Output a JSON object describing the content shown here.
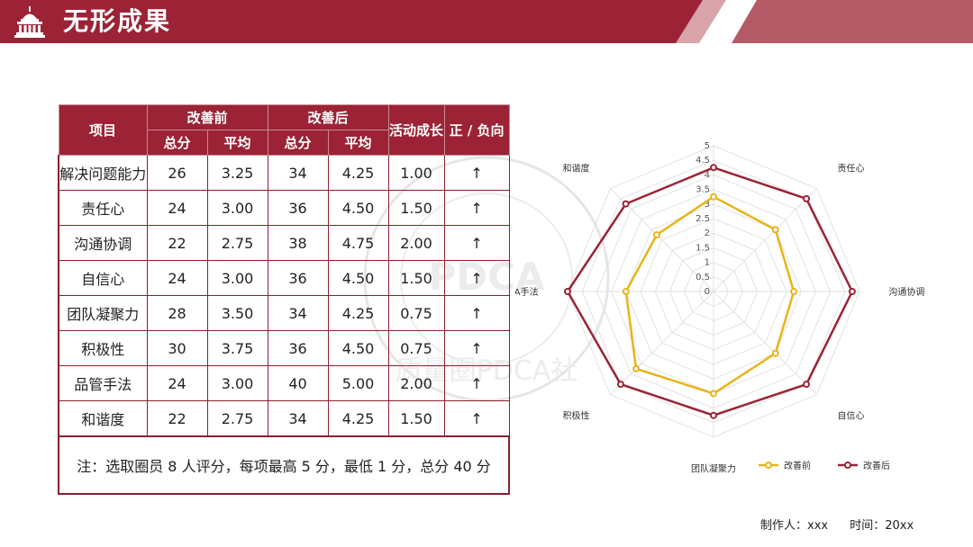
{
  "header": {
    "title": "无形成果",
    "icon": "capitol-building-icon",
    "colors": {
      "brand": "#9b2335",
      "stripe_light": "#d9a3aa",
      "stripe_mid": "#b45a67"
    }
  },
  "table": {
    "col_item": "项目",
    "group_before": "改善前",
    "group_after": "改善后",
    "col_growth": "活动成长",
    "col_direction": "正 / 负向",
    "sub_total": "总分",
    "sub_avg": "平均",
    "rows": [
      {
        "item": "解决问题能力",
        "before_total": "26",
        "before_avg": "3.25",
        "after_total": "34",
        "after_avg": "4.25",
        "growth": "1.00",
        "direction": "↑"
      },
      {
        "item": "责任心",
        "before_total": "24",
        "before_avg": "3.00",
        "after_total": "36",
        "after_avg": "4.50",
        "growth": "1.50",
        "direction": "↑"
      },
      {
        "item": "沟通协调",
        "before_total": "22",
        "before_avg": "2.75",
        "after_total": "38",
        "after_avg": "4.75",
        "growth": "2.00",
        "direction": "↑"
      },
      {
        "item": "自信心",
        "before_total": "24",
        "before_avg": "3.00",
        "after_total": "36",
        "after_avg": "4.50",
        "growth": "1.50",
        "direction": "↑"
      },
      {
        "item": "团队凝聚力",
        "before_total": "28",
        "before_avg": "3.50",
        "after_total": "34",
        "after_avg": "4.25",
        "growth": "0.75",
        "direction": "↑"
      },
      {
        "item": "积极性",
        "before_total": "30",
        "before_avg": "3.75",
        "after_total": "36",
        "after_avg": "4.50",
        "growth": "0.75",
        "direction": "↑"
      },
      {
        "item": "品管手法",
        "before_total": "24",
        "before_avg": "3.00",
        "after_total": "40",
        "after_avg": "5.00",
        "growth": "2.00",
        "direction": "↑"
      },
      {
        "item": "和谐度",
        "before_total": "22",
        "before_avg": "2.75",
        "after_total": "34",
        "after_avg": "4.25",
        "growth": "1.50",
        "direction": "↑"
      }
    ],
    "note": "注：选取圈员 8 人评分，每项最高 5 分，最低 1 分，总分 40 分"
  },
  "chart_data": {
    "type": "radar",
    "categories": [
      "解决问题能力",
      "责任心",
      "沟通协调",
      "自信心",
      "团队凝聚力",
      "积极性",
      "PDCA手法",
      "和谐度"
    ],
    "series": [
      {
        "name": "改善前",
        "values": [
          3.25,
          3.0,
          2.75,
          3.0,
          3.5,
          3.75,
          3.0,
          2.75
        ],
        "color": "#e8b418"
      },
      {
        "name": "改善后",
        "values": [
          4.25,
          4.5,
          4.75,
          4.5,
          4.25,
          4.5,
          5.0,
          4.25
        ],
        "color": "#9b2335"
      }
    ],
    "rlim": [
      0,
      5
    ],
    "ticks": [
      "0",
      "0.5",
      "1",
      "1.5",
      "2",
      "2.5",
      "3",
      "3.5",
      "4",
      "4.5",
      "5"
    ],
    "grid": true,
    "legend_position": "bottom-right"
  },
  "watermark": {
    "text": "PDCA",
    "ring_text": "质量圈PDCA社"
  },
  "footer": {
    "author": "制作人：xxx",
    "time": "时间：20xx"
  }
}
